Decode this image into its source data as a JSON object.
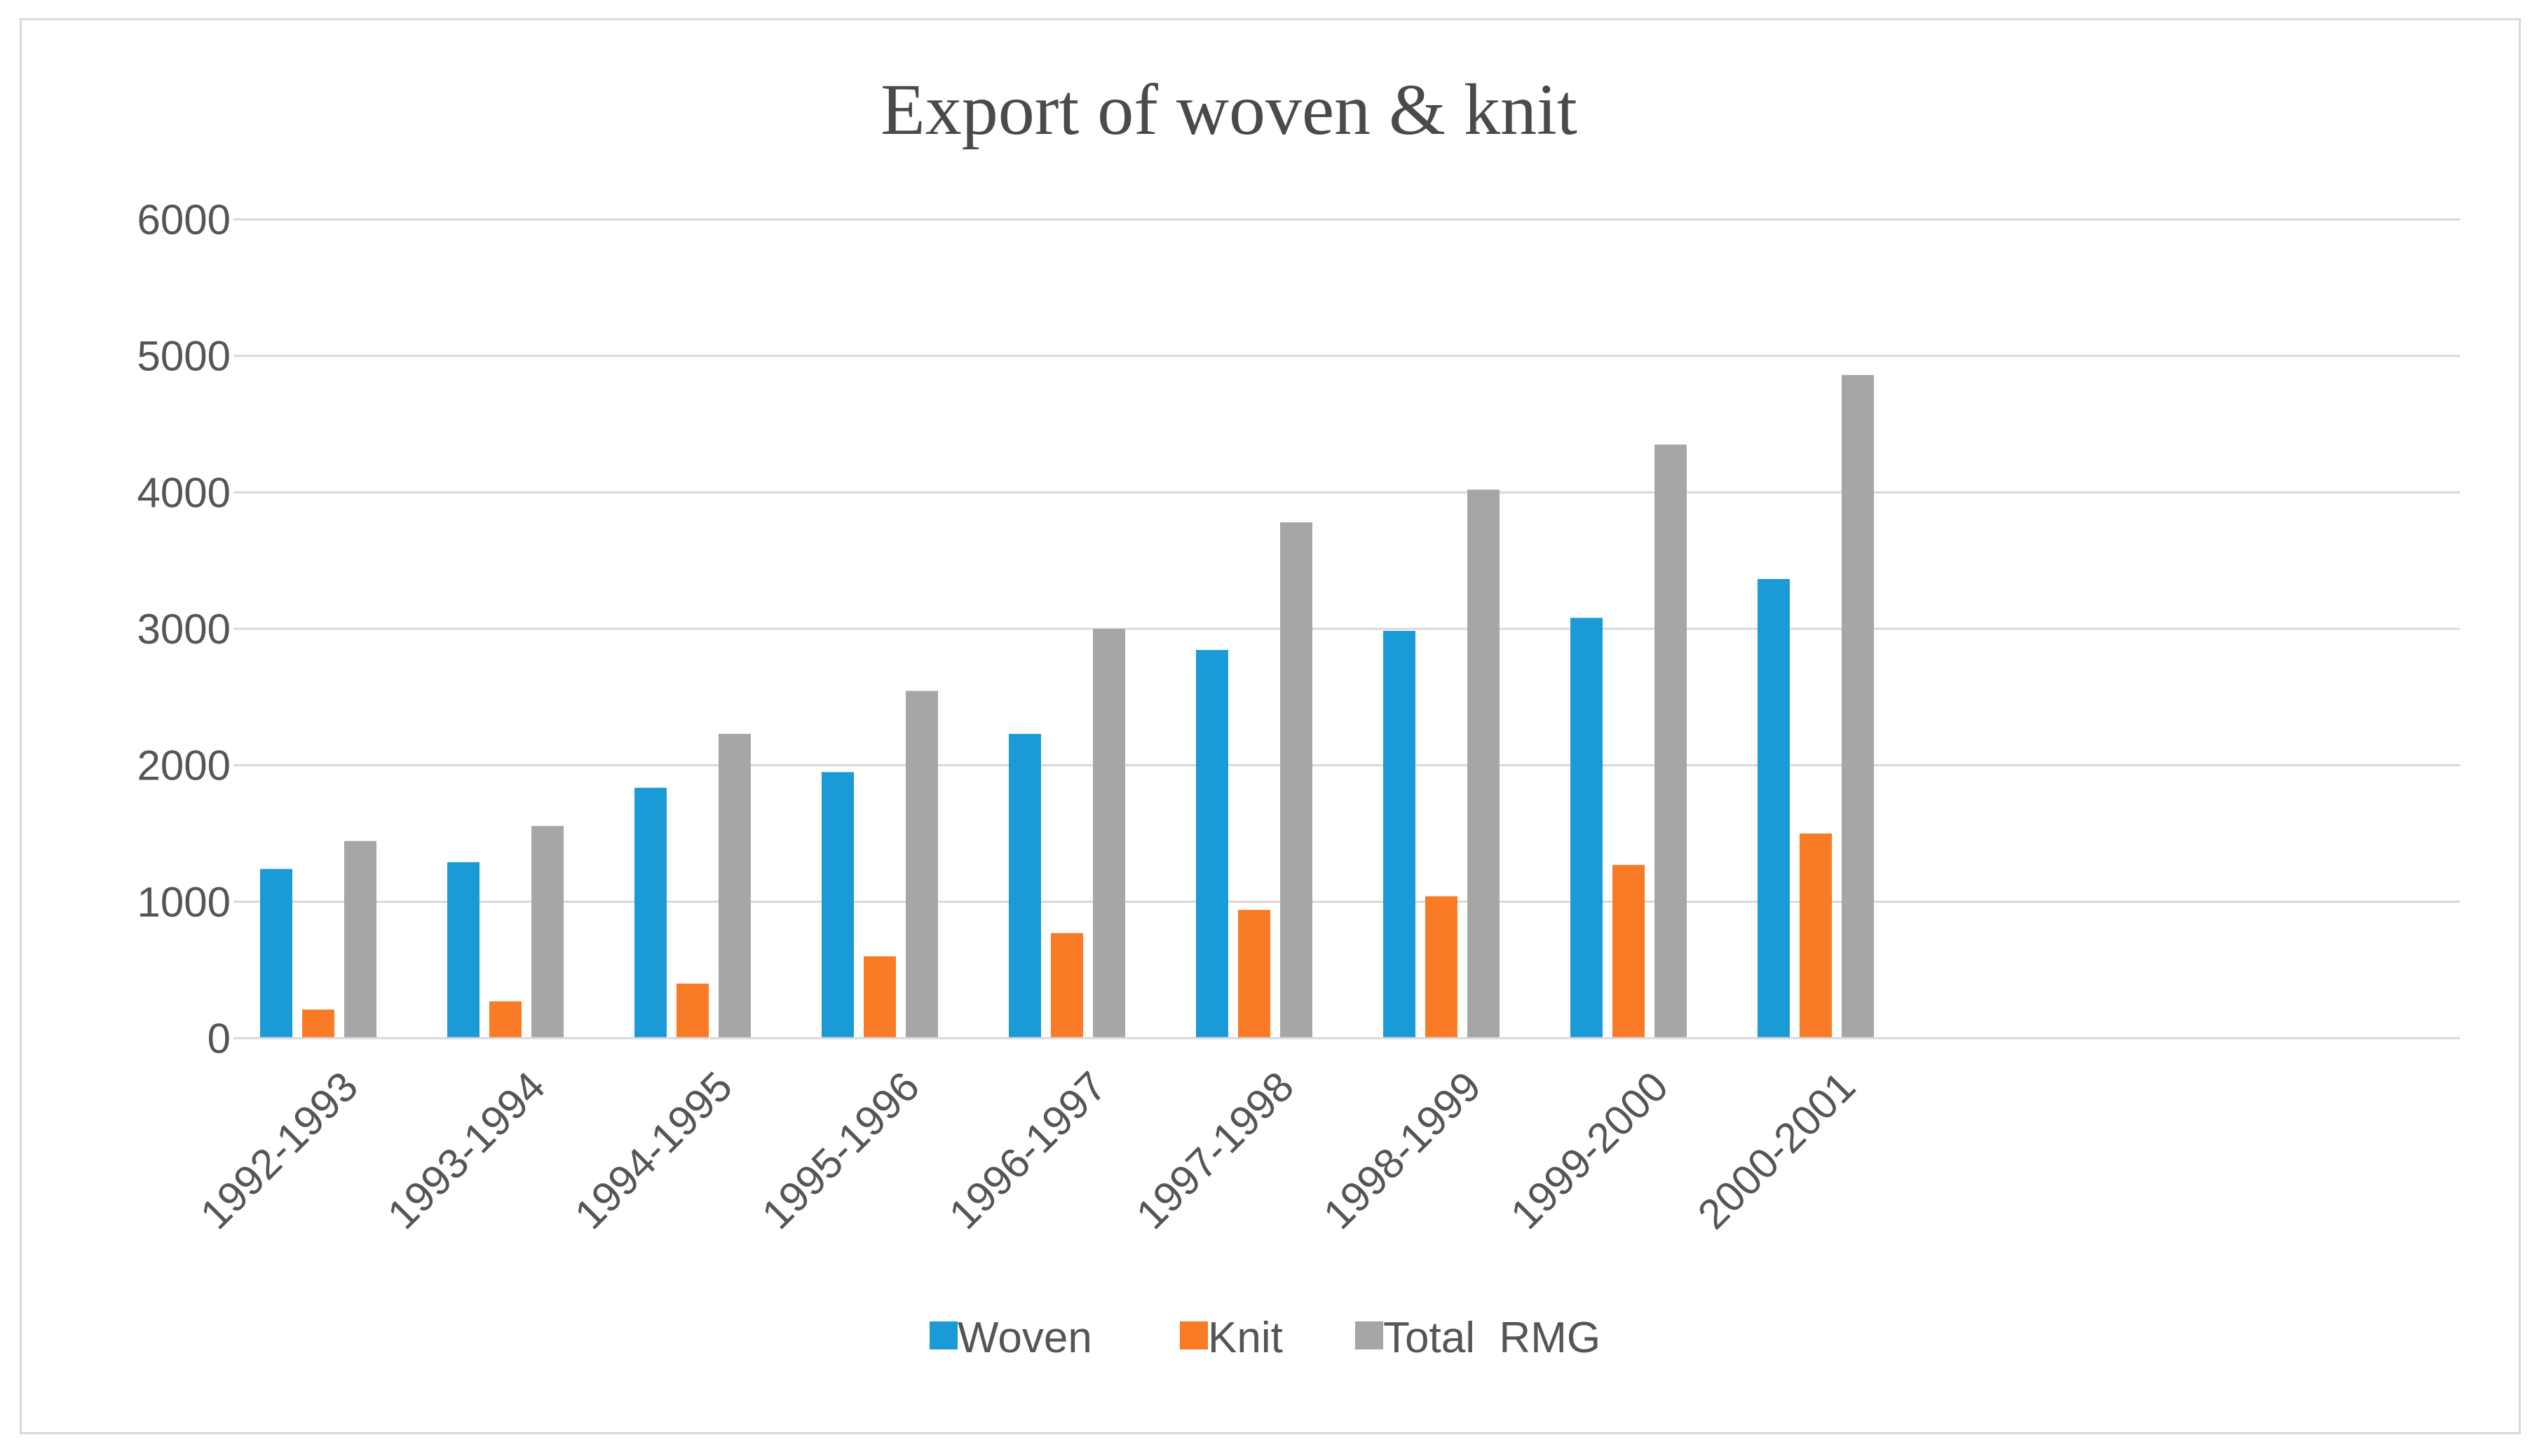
{
  "chart_data": {
    "type": "bar",
    "title": "Export of woven & knit",
    "categories": [
      "1992-1993",
      "1993-1994",
      "1994-1995",
      "1995-1996",
      "1996-1997",
      "1997-1998",
      "1998-1999",
      "1999-2000",
      "2000-2001"
    ],
    "series": [
      {
        "name": "Woven",
        "color": "#1a9bd7",
        "values": [
          1240,
          1290,
          1835,
          1950,
          2230,
          2845,
          2985,
          3080,
          3365
        ]
      },
      {
        "name": "Knit",
        "color": "#f97b26",
        "values": [
          210,
          270,
          400,
          600,
          770,
          940,
          1040,
          1270,
          1500
        ]
      },
      {
        "name": "Total  RMG",
        "color": "#a6a6a6",
        "values": [
          1445,
          1555,
          2230,
          2545,
          3000,
          3780,
          4020,
          4350,
          4860
        ]
      }
    ],
    "y_ticks": [
      "0",
      "1000",
      "2000",
      "3000",
      "4000",
      "5000",
      "6000"
    ],
    "ylim": [
      0,
      6000
    ],
    "xlabel": "",
    "ylabel": "",
    "grid": true,
    "legend_position": "bottom"
  }
}
